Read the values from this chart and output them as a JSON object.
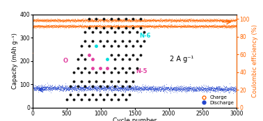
{
  "title": "2 A g⁻¹",
  "xlabel": "Cycle number",
  "ylabel_left": "Capacity (mAh g⁻¹)",
  "ylabel_right": "Coulombic efficiency (%)",
  "xlim": [
    0,
    3000
  ],
  "ylim_left": [
    0,
    400
  ],
  "ylim_right": [
    0,
    105
  ],
  "yticks_left": [
    0,
    100,
    200,
    300,
    400
  ],
  "yticks_right": [
    0,
    20,
    40,
    60,
    80,
    100
  ],
  "xticks": [
    0,
    500,
    1000,
    1500,
    2000,
    2500,
    3000
  ],
  "n_cycles": 3000,
  "discharge_stable": 85,
  "discharge_noise": 6,
  "charge_stable": 350,
  "charge_noise": 3,
  "coulombic_stable": 98.5,
  "coulombic_noise": 0.8,
  "discharge_color": "#2244cc",
  "charge_color": "#ff6600",
  "coulombic_color": "#ff6600",
  "background_color": "#ffffff",
  "legend_charge_label": "Charge",
  "legend_discharge_label": "Discharge",
  "inset_label_O": "O",
  "inset_label_N6": "N-6",
  "inset_label_N5": "N-5",
  "inset_color_O": "#e040a0",
  "inset_color_N6": "#00dddd",
  "inset_color_N5": "#e040a0",
  "carbon_color": "#111111",
  "bond_color": "#222222"
}
